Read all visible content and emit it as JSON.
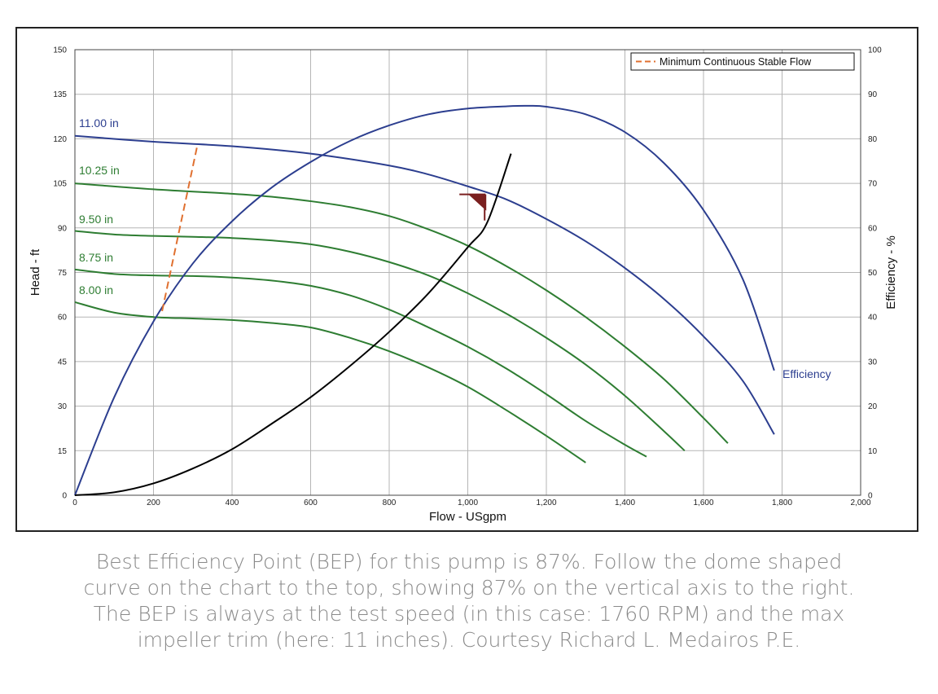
{
  "chart_data": {
    "type": "line",
    "xlabel": "Flow - USgpm",
    "ylabel": "Head - ft",
    "y2label": "Efficiency - %",
    "xlim": [
      0,
      2000
    ],
    "ylim": [
      0,
      150
    ],
    "y2lim": [
      0,
      100
    ],
    "x_ticks": [
      0,
      200,
      400,
      600,
      800,
      1000,
      1200,
      1400,
      1600,
      1800,
      2000
    ],
    "x_tick_labels": [
      "0",
      "200",
      "400",
      "600",
      "800",
      "1,000",
      "1,200",
      "1,400",
      "1,600",
      "1,800",
      "2,000"
    ],
    "y_ticks": [
      0,
      15,
      30,
      45,
      60,
      75,
      90,
      105,
      120,
      135,
      150
    ],
    "y_tick_labels": [
      "0",
      "15",
      "30",
      "45",
      "60",
      "75",
      "90",
      "105",
      "120",
      "135",
      "150"
    ],
    "y2_ticks": [
      0,
      10,
      20,
      30,
      40,
      50,
      60,
      70,
      80,
      90,
      100
    ],
    "y2_tick_labels": [
      "0",
      "10",
      "20",
      "30",
      "40",
      "50",
      "60",
      "70",
      "80",
      "90",
      "100"
    ],
    "grid": true,
    "legend": {
      "position": "top-right",
      "entries": [
        "Minimum Continuous Stable Flow"
      ]
    },
    "colors": {
      "head_11": "#2c3e8f",
      "head_trim": "#2e7d32",
      "efficiency": "#2c3e8f",
      "system": "#000000",
      "mcsf": "#e07030",
      "bep": "#7a1f1f",
      "grid": "#b5b5b5"
    },
    "series": [
      {
        "name": "11.00 in",
        "axis": "left",
        "color": "#2c3e8f",
        "x": [
          0,
          200,
          400,
          600,
          800,
          900,
          1000,
          1100,
          1200,
          1300,
          1400,
          1500,
          1600,
          1700,
          1780
        ],
        "y": [
          121,
          119,
          117.5,
          115,
          111,
          108,
          104,
          99.5,
          93,
          85.5,
          76.5,
          66,
          53.5,
          38.5,
          20.5
        ]
      },
      {
        "name": "10.25 in",
        "axis": "left",
        "color": "#2e7d32",
        "x": [
          0,
          200,
          400,
          500,
          600,
          700,
          800,
          900,
          1000,
          1100,
          1200,
          1300,
          1400,
          1500,
          1600,
          1662
        ],
        "y": [
          105,
          103,
          101.5,
          100.5,
          99,
          97,
          94,
          89.5,
          84,
          77,
          69,
          60,
          50,
          39,
          26,
          17.5
        ]
      },
      {
        "name": "9.50 in",
        "axis": "left",
        "color": "#2e7d32",
        "x": [
          0,
          100,
          200,
          300,
          400,
          500,
          600,
          700,
          800,
          900,
          1000,
          1100,
          1200,
          1300,
          1400,
          1500,
          1552
        ],
        "y": [
          89,
          87.8,
          87.3,
          87,
          86.6,
          85.8,
          84.5,
          82,
          78.5,
          74,
          68,
          61,
          53,
          44,
          33.5,
          21.5,
          15
        ]
      },
      {
        "name": "8.75 in",
        "axis": "left",
        "color": "#2e7d32",
        "x": [
          0,
          100,
          200,
          300,
          400,
          500,
          600,
          700,
          800,
          900,
          1000,
          1100,
          1200,
          1300,
          1400,
          1455
        ],
        "y": [
          76,
          74.5,
          74,
          73.8,
          73.3,
          72.3,
          70.5,
          67.3,
          62.5,
          56.5,
          50,
          42.5,
          34,
          25,
          17,
          13
        ]
      },
      {
        "name": "8.00 in",
        "axis": "left",
        "color": "#2e7d32",
        "x": [
          0,
          100,
          200,
          300,
          400,
          500,
          600,
          700,
          800,
          900,
          1000,
          1100,
          1200,
          1300
        ],
        "y": [
          65,
          61.5,
          60,
          59.5,
          59,
          58,
          56.5,
          53,
          48.5,
          43,
          36.5,
          28.5,
          20,
          11
        ]
      },
      {
        "name": "Efficiency",
        "axis": "right",
        "color": "#2c3e8f",
        "x": [
          0,
          100,
          200,
          300,
          400,
          500,
          600,
          700,
          800,
          900,
          1000,
          1100,
          1150,
          1200,
          1300,
          1400,
          1500,
          1600,
          1700,
          1780
        ],
        "y": [
          0,
          22,
          39,
          52,
          61.5,
          69,
          74.8,
          79.5,
          83,
          85.5,
          86.8,
          87.3,
          87.4,
          87.2,
          85.5,
          81.5,
          74.5,
          64,
          48.5,
          28
        ]
      },
      {
        "name": "",
        "axis": "left",
        "color": "#000000",
        "style": "system",
        "x": [
          0,
          100,
          200,
          300,
          400,
          500,
          600,
          700,
          800,
          900,
          1000,
          1050,
          1110
        ],
        "y": [
          0,
          1,
          4,
          9,
          15.5,
          24,
          33,
          43.5,
          55,
          68,
          83.5,
          92,
          115
        ]
      },
      {
        "name": "Minimum Continuous Stable Flow",
        "axis": "left",
        "color": "#e07030",
        "style": "dashed",
        "x": [
          222,
          312
        ],
        "y": [
          62,
          118
        ]
      }
    ],
    "labels": [
      {
        "text": "11.00 in",
        "series": "11.00 in"
      },
      {
        "text": "10.25 in",
        "series": "10.25 in"
      },
      {
        "text": "9.50 in",
        "series": "9.50 in"
      },
      {
        "text": "8.75 in",
        "series": "8.75 in"
      },
      {
        "text": "8.00 in",
        "series": "8.00 in"
      },
      {
        "text": "Efficiency",
        "series": "Efficiency"
      }
    ],
    "bep_marker": {
      "x": 1045,
      "y": 101
    }
  },
  "caption": {
    "lines": [
      "Best Efficiency Point (BEP) for this pump is 87%. Follow the dome shaped",
      "curve on the chart to the top, showing 87% on the vertical axis to the right.",
      "The BEP is always at the test speed (in this case: 1760 RPM) and the max",
      "impeller trim (here:  11 inches). Courtesy Richard L. Medairos P.E."
    ]
  }
}
